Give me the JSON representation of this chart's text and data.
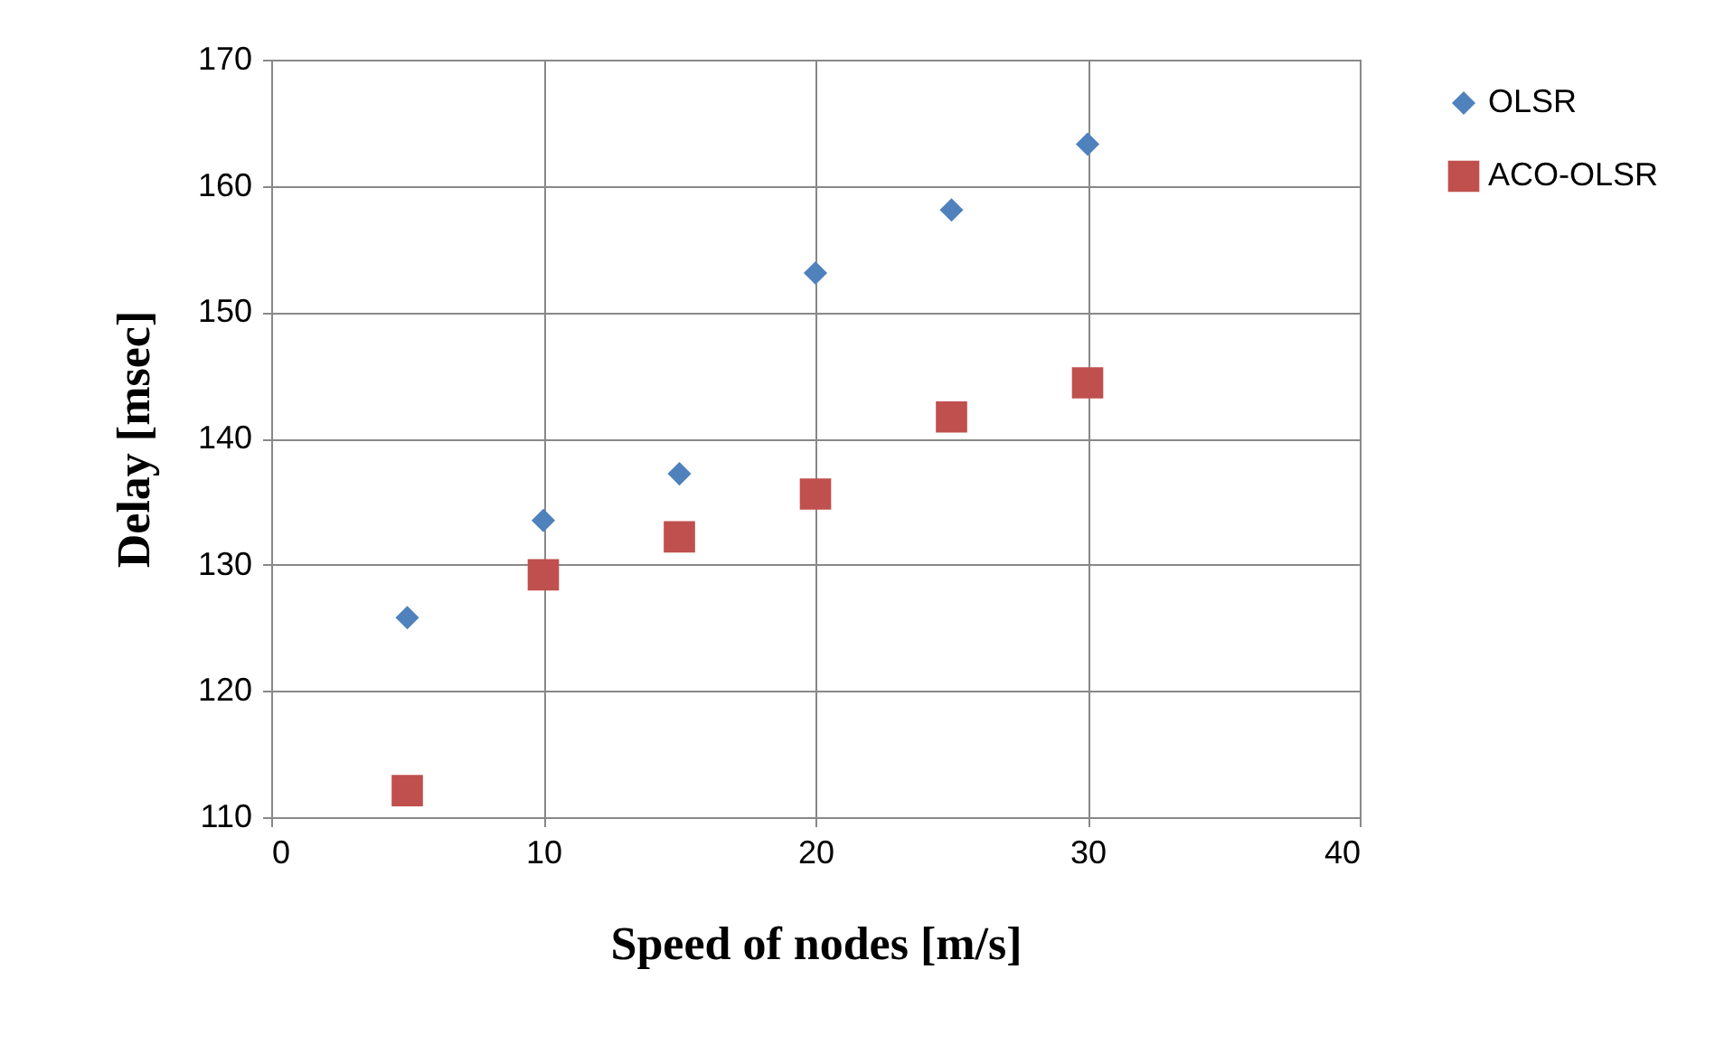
{
  "chart_data": {
    "type": "scatter",
    "xlabel": "Speed of  nodes [m/s]",
    "ylabel": "Delay [msec]",
    "x": [
      5,
      10,
      15,
      20,
      25,
      30
    ],
    "series": [
      {
        "name": "OLSR",
        "color": "#4f81bd",
        "marker": "diamond",
        "values": [
          125.8,
          133.5,
          137.2,
          153.1,
          158.1,
          163.3
        ]
      },
      {
        "name": "ACO-OLSR",
        "color": "#c0504d",
        "marker": "square",
        "values": [
          112.1,
          129.2,
          132.2,
          135.6,
          141.7,
          144.4
        ]
      }
    ],
    "xlim": [
      0,
      40
    ],
    "xticks": [
      0,
      10,
      20,
      30,
      40
    ],
    "ylim": [
      110,
      170
    ],
    "yticks": [
      110,
      120,
      130,
      140,
      150,
      160,
      170
    ],
    "grid": true,
    "legend": "right"
  }
}
